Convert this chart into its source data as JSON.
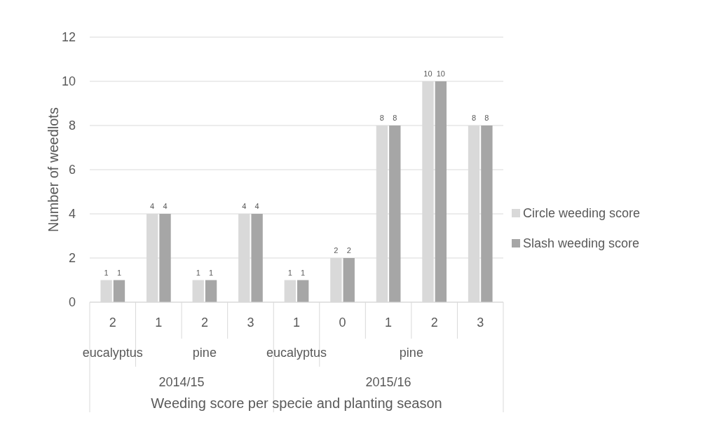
{
  "chart_data": {
    "type": "bar",
    "xlabel": "Weeding score per specie and planting season",
    "ylabel": "Number of weedlots",
    "categories": [
      "2",
      "1",
      "2",
      "3",
      "1",
      "0",
      "1",
      "2",
      "3"
    ],
    "series": [
      {
        "name": "Circle weeding score",
        "color": "#d9d9d9",
        "values": [
          1,
          4,
          1,
          4,
          1,
          2,
          8,
          10,
          8
        ]
      },
      {
        "name": "Slash weeding score",
        "color": "#a6a6a6",
        "values": [
          1,
          4,
          1,
          4,
          1,
          2,
          8,
          10,
          8
        ]
      }
    ],
    "annotations": [
      "eucalyptus",
      "pine",
      "eucalyptus",
      "pine",
      "2014/15",
      "2015/16"
    ],
    "ylim": [
      0,
      12
    ],
    "yticks": [
      0,
      2,
      4,
      6,
      8,
      10,
      12
    ],
    "grid": "y",
    "legend": "right",
    "data_labels": true
  }
}
